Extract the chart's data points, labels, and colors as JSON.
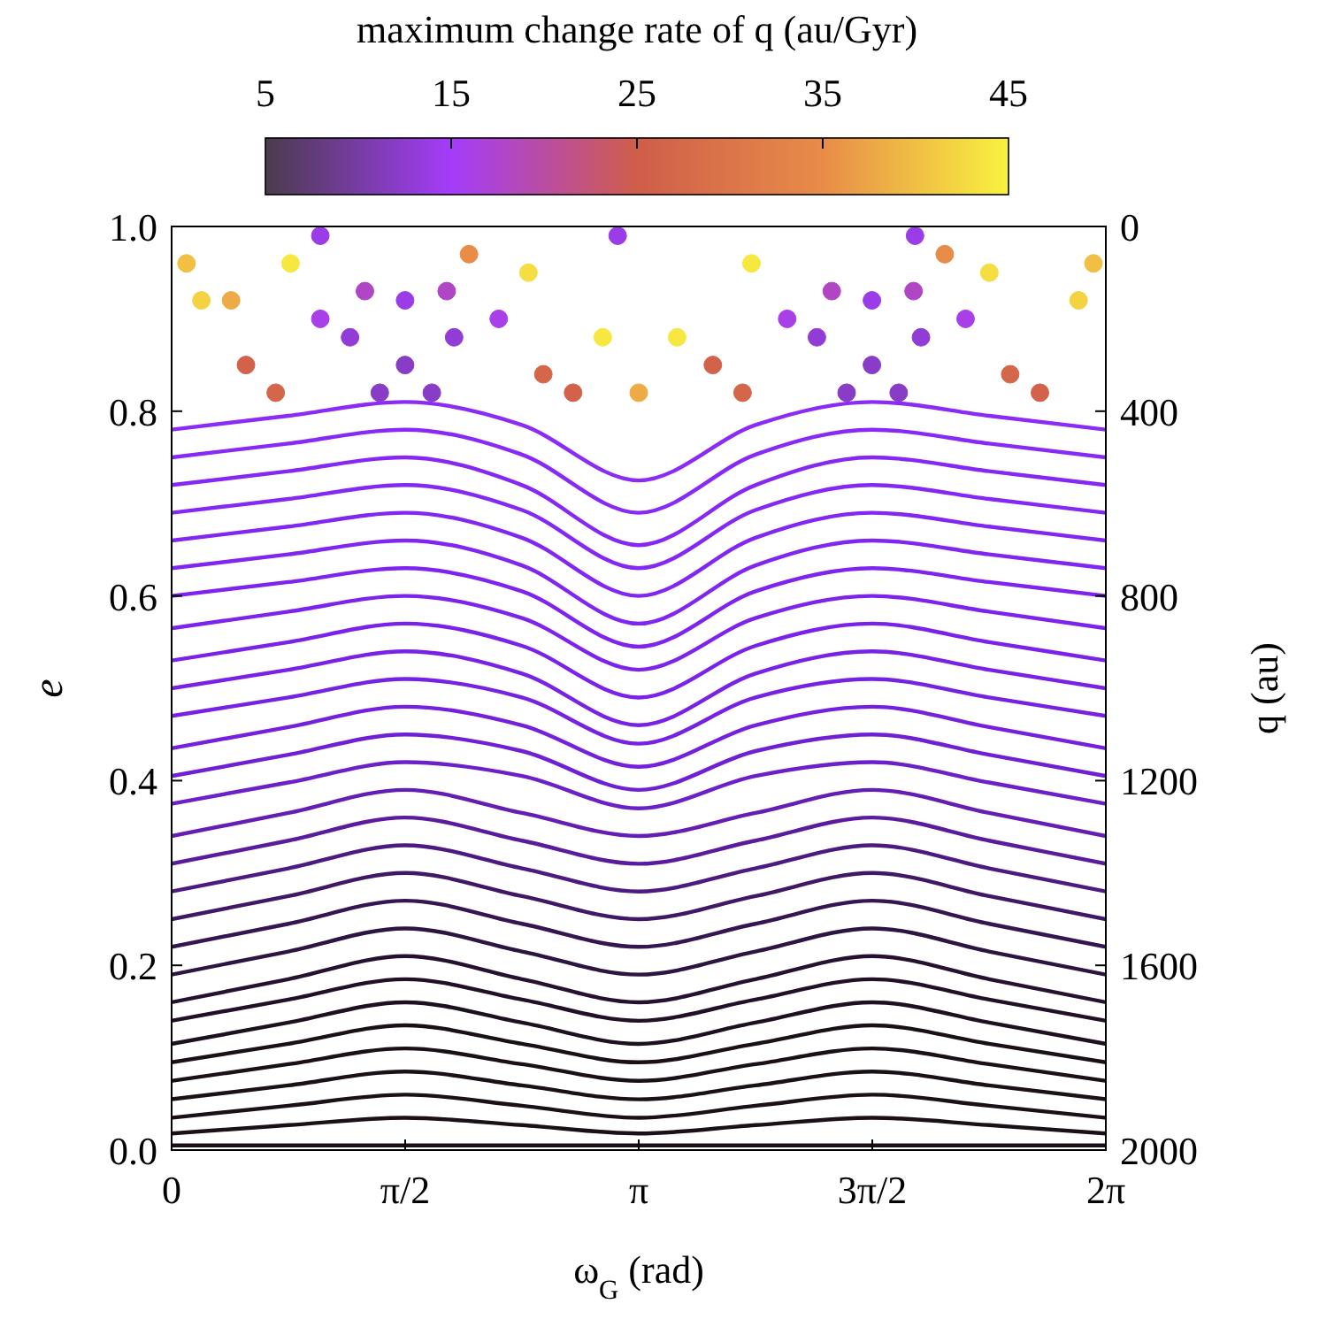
{
  "chart_data": {
    "type": "line",
    "xlabel": "ω$_{G}$ (rad)",
    "ylabel": "e",
    "y2label": "q (au)",
    "clabel": "maximum change rate of q (au/Gyr)",
    "xlim": [
      0,
      6.2832
    ],
    "xticks": [
      {
        "value": 0,
        "label": "0"
      },
      {
        "value": 1.5708,
        "label": "π/2"
      },
      {
        "value": 3.1416,
        "label": "π"
      },
      {
        "value": 4.7124,
        "label": "3π/2"
      },
      {
        "value": 6.2832,
        "label": "2π"
      }
    ],
    "ylim": [
      0,
      1
    ],
    "yticks": [
      {
        "value": 0,
        "label": "0.0"
      },
      {
        "value": 0.2,
        "label": "0.2"
      },
      {
        "value": 0.4,
        "label": "0.4"
      },
      {
        "value": 0.6,
        "label": "0.6"
      },
      {
        "value": 0.8,
        "label": "0.8"
      },
      {
        "value": 1,
        "label": "1.0"
      }
    ],
    "y2lim": [
      2000,
      0
    ],
    "y2ticks": [
      0,
      400,
      800,
      1200,
      1600,
      2000
    ],
    "clim": [
      5,
      45
    ],
    "cticks": [
      5,
      15,
      25,
      35,
      45
    ],
    "grid": false,
    "x": [
      0,
      0.7854,
      1.5708,
      2.3562,
      3.1416,
      3.927,
      4.7124,
      5.4978,
      6.2832
    ],
    "series": [
      {
        "color": "#1c1018",
        "values": [
          0.005,
          0.005,
          0.005,
          0.005,
          0.005,
          0.005,
          0.005,
          0.005,
          0.005
        ]
      },
      {
        "color": "#1c1018",
        "values": [
          0.018,
          0.027,
          0.035,
          0.027,
          0.018,
          0.027,
          0.035,
          0.027,
          0.018
        ]
      },
      {
        "color": "#1c1018",
        "values": [
          0.035,
          0.048,
          0.06,
          0.048,
          0.035,
          0.048,
          0.06,
          0.048,
          0.035
        ]
      },
      {
        "color": "#1c1018",
        "values": [
          0.055,
          0.07,
          0.085,
          0.07,
          0.055,
          0.07,
          0.085,
          0.07,
          0.055
        ]
      },
      {
        "color": "#1c1018",
        "values": [
          0.075,
          0.093,
          0.11,
          0.093,
          0.075,
          0.093,
          0.11,
          0.093,
          0.075
        ]
      },
      {
        "color": "#1c1018",
        "values": [
          0.095,
          0.115,
          0.135,
          0.115,
          0.095,
          0.115,
          0.135,
          0.115,
          0.095
        ]
      },
      {
        "color": "#1e1020",
        "values": [
          0.115,
          0.138,
          0.16,
          0.138,
          0.115,
          0.138,
          0.16,
          0.138,
          0.115
        ]
      },
      {
        "color": "#221028",
        "values": [
          0.14,
          0.163,
          0.185,
          0.163,
          0.14,
          0.163,
          0.185,
          0.163,
          0.14
        ]
      },
      {
        "color": "#261230",
        "values": [
          0.16,
          0.185,
          0.21,
          0.185,
          0.16,
          0.185,
          0.21,
          0.185,
          0.16
        ]
      },
      {
        "color": "#2e1440",
        "values": [
          0.19,
          0.215,
          0.24,
          0.215,
          0.19,
          0.215,
          0.24,
          0.215,
          0.19
        ]
      },
      {
        "color": "#361650",
        "values": [
          0.22,
          0.245,
          0.27,
          0.245,
          0.22,
          0.245,
          0.27,
          0.245,
          0.22
        ]
      },
      {
        "color": "#401866",
        "values": [
          0.25,
          0.275,
          0.3,
          0.275,
          0.25,
          0.275,
          0.3,
          0.275,
          0.25
        ]
      },
      {
        "color": "#4c1a80",
        "values": [
          0.28,
          0.305,
          0.33,
          0.305,
          0.28,
          0.305,
          0.33,
          0.305,
          0.28
        ]
      },
      {
        "color": "#5a1c9c",
        "values": [
          0.31,
          0.335,
          0.36,
          0.335,
          0.31,
          0.335,
          0.36,
          0.335,
          0.31
        ]
      },
      {
        "color": "#641eb4",
        "values": [
          0.34,
          0.365,
          0.39,
          0.365,
          0.34,
          0.365,
          0.39,
          0.365,
          0.34
        ]
      },
      {
        "color": "#6c20c8",
        "values": [
          0.375,
          0.398,
          0.42,
          0.405,
          0.37,
          0.405,
          0.42,
          0.398,
          0.375
        ]
      },
      {
        "color": "#7020d4",
        "values": [
          0.405,
          0.428,
          0.45,
          0.432,
          0.39,
          0.432,
          0.45,
          0.428,
          0.405
        ]
      },
      {
        "color": "#7420dc",
        "values": [
          0.435,
          0.458,
          0.48,
          0.46,
          0.415,
          0.46,
          0.48,
          0.458,
          0.435
        ]
      },
      {
        "color": "#7622e2",
        "values": [
          0.47,
          0.49,
          0.51,
          0.49,
          0.44,
          0.49,
          0.51,
          0.49,
          0.47
        ]
      },
      {
        "color": "#7822e6",
        "values": [
          0.5,
          0.52,
          0.54,
          0.516,
          0.46,
          0.516,
          0.54,
          0.52,
          0.5
        ]
      },
      {
        "color": "#7a22ea",
        "values": [
          0.53,
          0.55,
          0.57,
          0.546,
          0.49,
          0.546,
          0.57,
          0.55,
          0.53
        ]
      },
      {
        "color": "#7c24ec",
        "values": [
          0.565,
          0.583,
          0.6,
          0.576,
          0.52,
          0.576,
          0.6,
          0.583,
          0.565
        ]
      },
      {
        "color": "#7e24ee",
        "values": [
          0.6,
          0.615,
          0.63,
          0.605,
          0.545,
          0.605,
          0.63,
          0.615,
          0.6
        ]
      },
      {
        "color": "#8026f0",
        "values": [
          0.63,
          0.645,
          0.66,
          0.633,
          0.57,
          0.633,
          0.66,
          0.645,
          0.63
        ]
      },
      {
        "color": "#8226f2",
        "values": [
          0.66,
          0.675,
          0.69,
          0.663,
          0.6,
          0.663,
          0.69,
          0.675,
          0.66
        ]
      },
      {
        "color": "#8428f4",
        "values": [
          0.69,
          0.705,
          0.72,
          0.693,
          0.63,
          0.693,
          0.72,
          0.705,
          0.69
        ]
      },
      {
        "color": "#8628f4",
        "values": [
          0.72,
          0.735,
          0.75,
          0.72,
          0.655,
          0.72,
          0.75,
          0.735,
          0.72
        ]
      },
      {
        "color": "#882af6",
        "values": [
          0.75,
          0.765,
          0.78,
          0.753,
          0.69,
          0.753,
          0.78,
          0.765,
          0.75
        ]
      },
      {
        "color": "#8a2cf6",
        "values": [
          0.78,
          0.795,
          0.81,
          0.785,
          0.725,
          0.785,
          0.81,
          0.795,
          0.78
        ]
      },
      {
        "type": "scatter",
        "x": [
          1.2,
          1.57,
          1.9,
          1.57,
          1.0,
          2.2,
          1.4,
          1.75,
          1.3,
          1.85,
          4.34,
          4.71,
          5.04,
          4.71,
          4.14,
          5.34,
          4.54,
          4.89,
          4.44,
          4.99,
          0.5,
          0.7,
          2.5,
          2.7,
          3.64,
          3.84,
          5.64,
          5.84,
          0.2,
          0.1,
          0.8,
          2.4,
          2.9,
          3.1416,
          3.4,
          3.9,
          5.5,
          6.1,
          6.2,
          0.4,
          2.0,
          5.2,
          1.0,
          3.0,
          5.0
        ],
        "values": [
          0.88,
          0.85,
          0.88,
          0.92,
          0.9,
          0.9,
          0.82,
          0.82,
          0.93,
          0.93,
          0.88,
          0.85,
          0.88,
          0.92,
          0.9,
          0.9,
          0.82,
          0.82,
          0.93,
          0.93,
          0.85,
          0.82,
          0.84,
          0.82,
          0.85,
          0.82,
          0.84,
          0.82,
          0.92,
          0.96,
          0.96,
          0.95,
          0.88,
          0.82,
          0.88,
          0.96,
          0.95,
          0.92,
          0.96,
          0.92,
          0.97,
          0.97,
          0.99,
          0.99,
          0.99
        ],
        "cvalues": [
          13,
          12,
          13,
          14,
          16,
          16,
          12,
          12,
          18,
          18,
          13,
          12,
          13,
          14,
          16,
          16,
          12,
          12,
          18,
          18,
          26,
          27,
          27,
          26,
          26,
          27,
          27,
          26,
          42,
          40,
          44,
          43,
          44,
          38,
          44,
          44,
          43,
          42,
          40,
          38,
          35,
          35,
          14,
          14,
          14
        ],
        "colors": [
          "#923cd7",
          "#893cc6",
          "#923cd7",
          "#9b3ce9",
          "#a83fe8",
          "#a83fe8",
          "#893cc6",
          "#893cc6",
          "#b146c5",
          "#b146c5",
          "#923cd7",
          "#893cc6",
          "#923cd7",
          "#9b3ce9",
          "#a83fe8",
          "#a83fe8",
          "#893cc6",
          "#893cc6",
          "#b146c5",
          "#b146c5",
          "#d2634a",
          "#d4674a",
          "#d4674a",
          "#d2634a",
          "#d2634a",
          "#d4674a",
          "#d4674a",
          "#d2634a",
          "#f3d342",
          "#f0bf44",
          "#f6e841",
          "#f5de42",
          "#f6e841",
          "#edab46",
          "#f6e841",
          "#f6e841",
          "#f5de42",
          "#f3d342",
          "#f0bf44",
          "#edab46",
          "#e88c48",
          "#e88c48",
          "#9b3ce9",
          "#9b3ce9",
          "#9b3ce9"
        ]
      }
    ]
  }
}
